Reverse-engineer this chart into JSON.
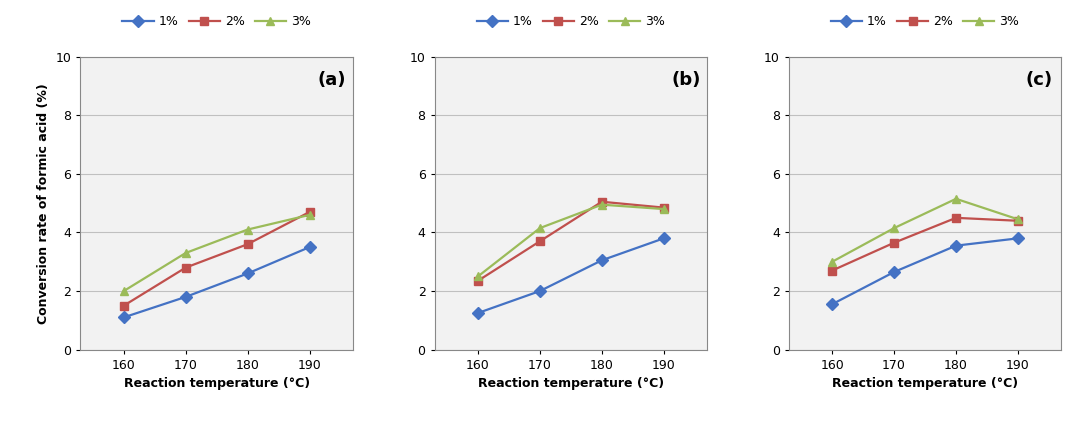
{
  "x": [
    160,
    170,
    180,
    190
  ],
  "panels": [
    {
      "label": "(a)",
      "series": {
        "1%": [
          1.1,
          1.8,
          2.6,
          3.5
        ],
        "2%": [
          1.5,
          2.8,
          3.6,
          4.7
        ],
        "3%": [
          2.0,
          3.3,
          4.1,
          4.6
        ]
      }
    },
    {
      "label": "(b)",
      "series": {
        "1%": [
          1.25,
          2.0,
          3.05,
          3.8
        ],
        "2%": [
          2.35,
          3.7,
          5.05,
          4.85
        ],
        "3%": [
          2.5,
          4.15,
          4.95,
          4.8
        ]
      }
    },
    {
      "label": "(c)",
      "series": {
        "1%": [
          1.55,
          2.65,
          3.55,
          3.8
        ],
        "2%": [
          2.7,
          3.65,
          4.5,
          4.4
        ],
        "3%": [
          3.0,
          4.15,
          5.15,
          4.45
        ]
      }
    }
  ],
  "colors": {
    "1%": "#4472C4",
    "2%": "#C0504D",
    "3%": "#9BBB59"
  },
  "markers": {
    "1%": "D",
    "2%": "s",
    "3%": "^"
  },
  "xlabel": "Reaction temperature (°C)",
  "ylabel": "Conversion rate of formic acid (%)",
  "ylim": [
    0,
    10
  ],
  "yticks": [
    0,
    2,
    4,
    6,
    8,
    10
  ],
  "xticks": [
    160,
    170,
    180,
    190
  ],
  "legend_labels": [
    "1%",
    "2%",
    "3%"
  ],
  "line_width": 1.6,
  "marker_size": 6,
  "grid_color": "#C0C0C0",
  "bg_color": "#FFFFFF",
  "plot_bg_color": "#F2F2F2"
}
